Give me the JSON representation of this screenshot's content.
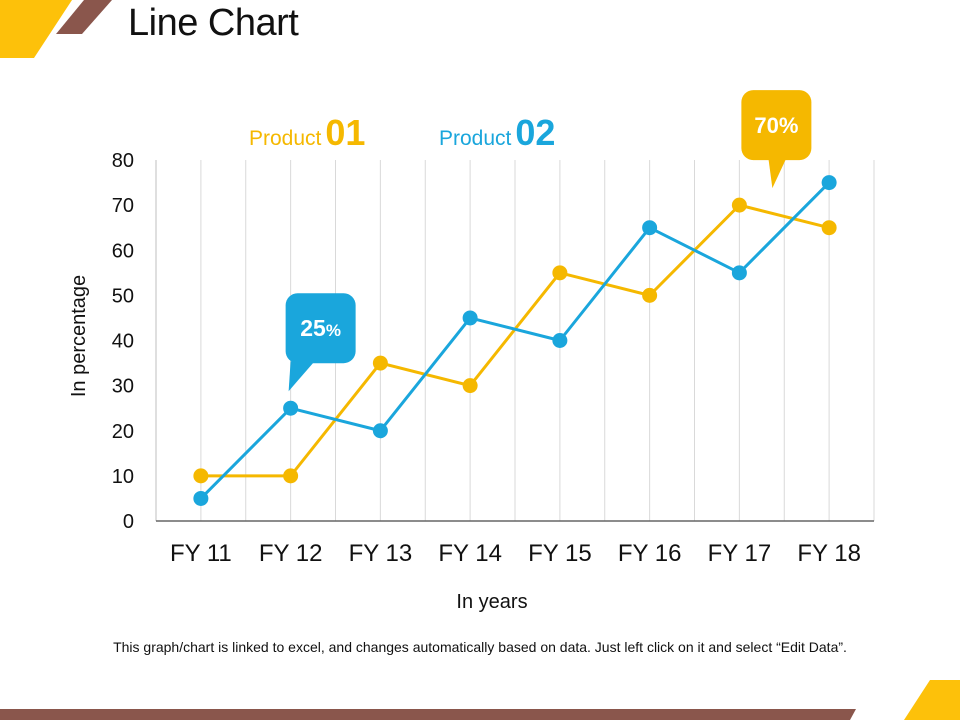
{
  "slide": {
    "title": "Line Chart",
    "footnote": "This graph/chart is linked to excel, and changes automatically based on data. Just left click on it and select “Edit Data”."
  },
  "legend": [
    {
      "name": "Product",
      "number": "01",
      "color": "#f5b800"
    },
    {
      "name": "Product",
      "number": "02",
      "color": "#1aa6dc"
    }
  ],
  "callouts": [
    {
      "value": "25",
      "unit": "%",
      "color": "#1aa6dc"
    },
    {
      "value": "70%",
      "color": "#f5b800"
    }
  ],
  "colors": {
    "accent_yellow": "#fdc10a",
    "accent_brown": "#8a564c"
  },
  "chart_data": {
    "type": "line",
    "title": "",
    "xlabel": "In years",
    "ylabel": "In percentage",
    "categories": [
      "FY 11",
      "FY 12",
      "FY 13",
      "FY 14",
      "FY 15",
      "FY 16",
      "FY 17",
      "FY 18"
    ],
    "yticks": [
      "0",
      "10",
      "20",
      "30",
      "40",
      "50",
      "60",
      "70",
      "80"
    ],
    "ylim": [
      0,
      80
    ],
    "grid": "vertical",
    "legend_position": "top",
    "series": [
      {
        "name": "Product 01",
        "color": "#f5b800",
        "values": [
          10,
          10,
          35,
          30,
          55,
          50,
          70,
          65
        ]
      },
      {
        "name": "Product 02",
        "color": "#1aa6dc",
        "values": [
          5,
          25,
          20,
          45,
          40,
          65,
          55,
          75
        ]
      }
    ]
  }
}
